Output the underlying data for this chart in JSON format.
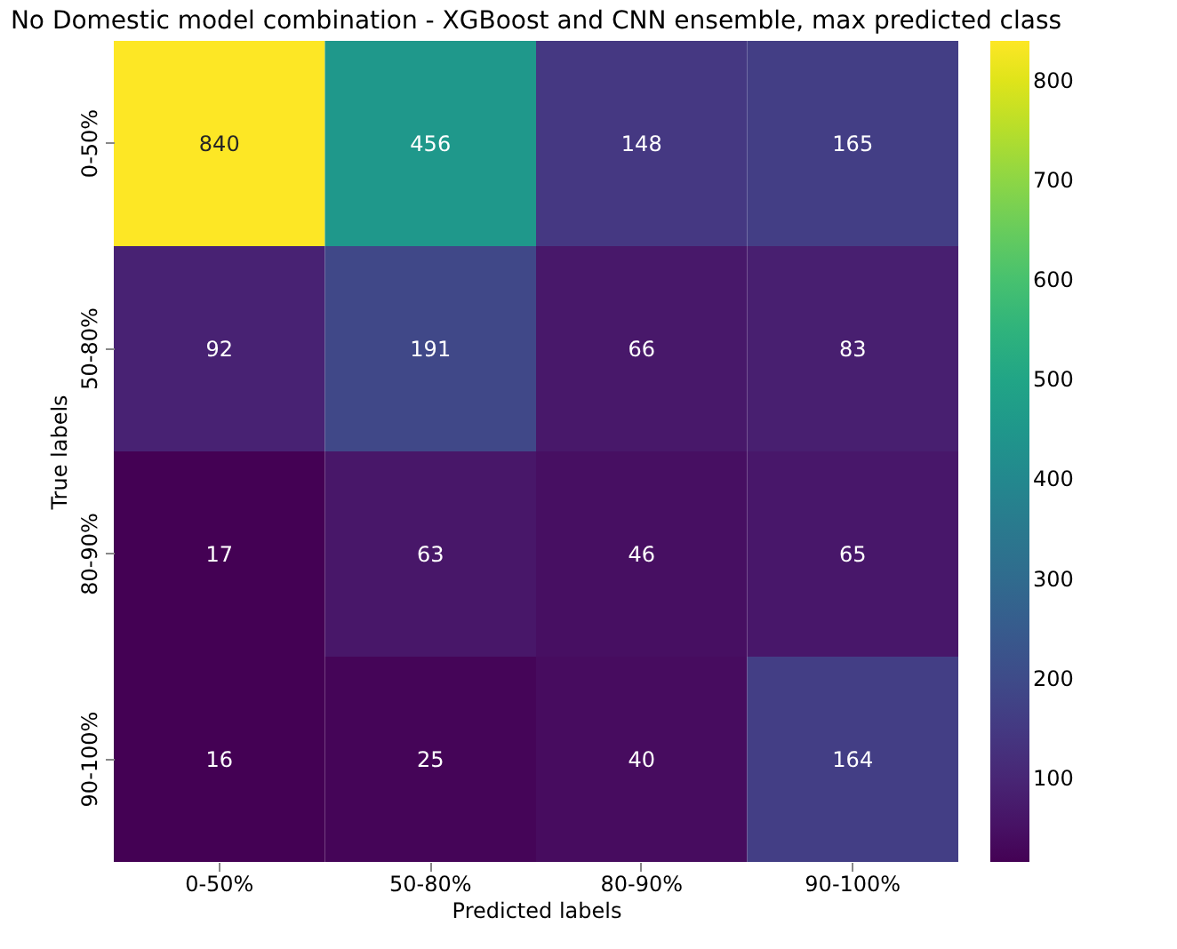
{
  "chart_data": {
    "type": "heatmap",
    "title": "No Domestic model combination - XGBoost and CNN ensemble, max predicted class",
    "xlabel": "Predicted labels",
    "ylabel": "True labels",
    "categories": [
      "0-50%",
      "50-80%",
      "80-90%",
      "90-100%"
    ],
    "y_categories": [
      "0-50%",
      "50-80%",
      "80-90%",
      "90-100%"
    ],
    "cells": [
      [
        840,
        456,
        148,
        165
      ],
      [
        92,
        191,
        66,
        83
      ],
      [
        17,
        63,
        46,
        65
      ],
      [
        16,
        25,
        40,
        164
      ]
    ],
    "data_labels": true,
    "clim": [
      16,
      840
    ],
    "cticks": [
      100,
      200,
      300,
      400,
      500,
      600,
      700,
      800
    ]
  }
}
